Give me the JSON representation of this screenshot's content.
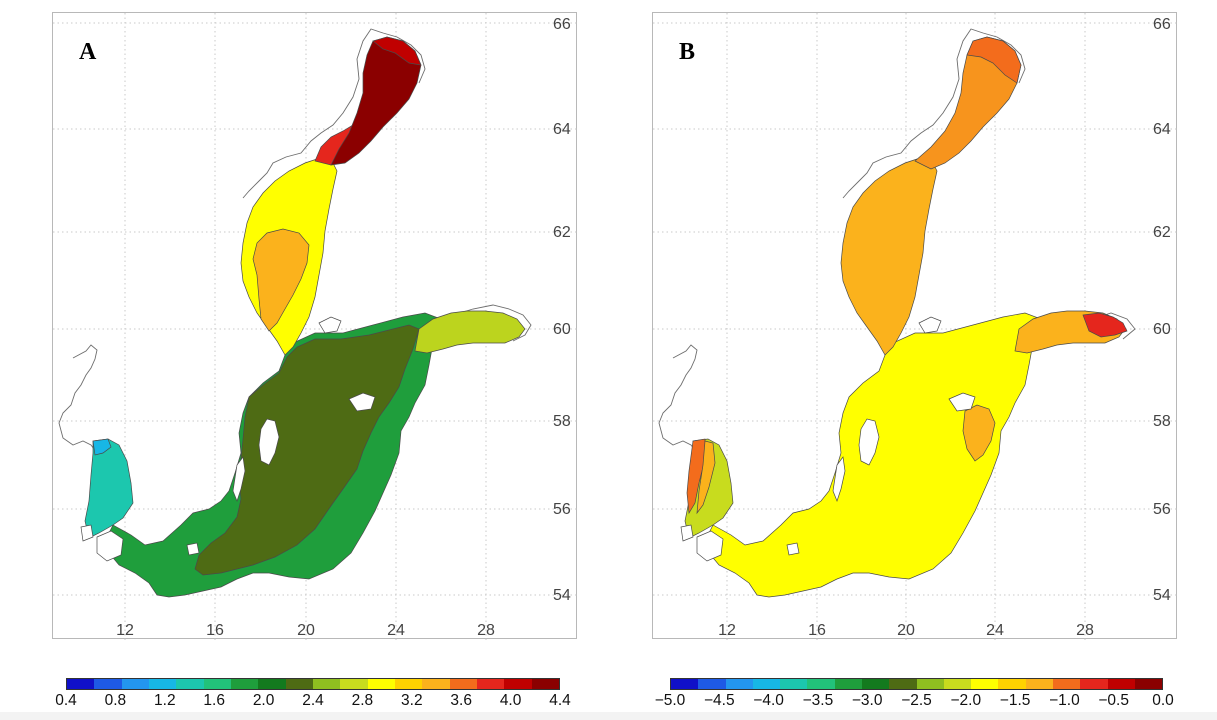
{
  "panels": [
    {
      "letter": "A",
      "lat_labels": [
        "66",
        "64",
        "62",
        "60",
        "58",
        "56",
        "54"
      ],
      "lon_labels": [
        "12",
        "16",
        "20",
        "24",
        "28"
      ],
      "colorbar_labels": [
        "0.4",
        "0.8",
        "1.2",
        "1.6",
        "2.0",
        "2.4",
        "2.8",
        "3.2",
        "3.6",
        "4.0",
        "4.4"
      ],
      "colorbar_colors": [
        "#1010c8",
        "#1e5ae6",
        "#2396ef",
        "#17b7e6",
        "#1cc7ae",
        "#22c27a",
        "#1f9e3c",
        "#137a1e",
        "#4e6b14",
        "#8fbf20",
        "#c8dc1e",
        "#ffff00",
        "#ffd200",
        "#fbb21c",
        "#f36c1c",
        "#e5261d",
        "#c00000",
        "#8b0000"
      ],
      "field": {
        "gulf_of_bothnia_north": "#8b0000",
        "gulf_of_bothnia_fringe": "#e5261d",
        "bothnian_sea": "#ffff00",
        "bothnian_sea_center": "#fbb21c",
        "baltic_proper": "#4e6b14",
        "gulf_of_finland": "#bcd41e",
        "kattegat": "#1cc7ae",
        "southern_baltic": "#1f9e3c"
      }
    },
    {
      "letter": "B",
      "lat_labels": [
        "66",
        "64",
        "62",
        "60",
        "58",
        "56",
        "54"
      ],
      "lon_labels": [
        "12",
        "16",
        "20",
        "24",
        "28"
      ],
      "colorbar_labels": [
        "−5.0",
        "−4.5",
        "−4.0",
        "−3.5",
        "−3.0",
        "−2.5",
        "−2.0",
        "−1.5",
        "−1.0",
        "−0.5",
        "0.0"
      ],
      "colorbar_colors": [
        "#1010c8",
        "#1e5ae6",
        "#2396ef",
        "#17b7e6",
        "#1cc7ae",
        "#22c27a",
        "#1f9e3c",
        "#137a1e",
        "#4e6b14",
        "#8fbf20",
        "#c8dc1e",
        "#ffff00",
        "#ffd200",
        "#fbb21c",
        "#f36c1c",
        "#e5261d",
        "#c00000",
        "#8b0000"
      ],
      "field": {
        "gulf_of_bothnia_north": "#f36c1c",
        "bothnian_sea": "#fbb21c",
        "baltic_proper": "#ffff00",
        "gulf_of_finland": "#fbb21c",
        "gulf_of_finland_east": "#e5261d",
        "kattegat": "#c8dc1e",
        "skagerrak_coast": "#f36c1c",
        "southern_baltic": "#ffff00"
      }
    }
  ]
}
